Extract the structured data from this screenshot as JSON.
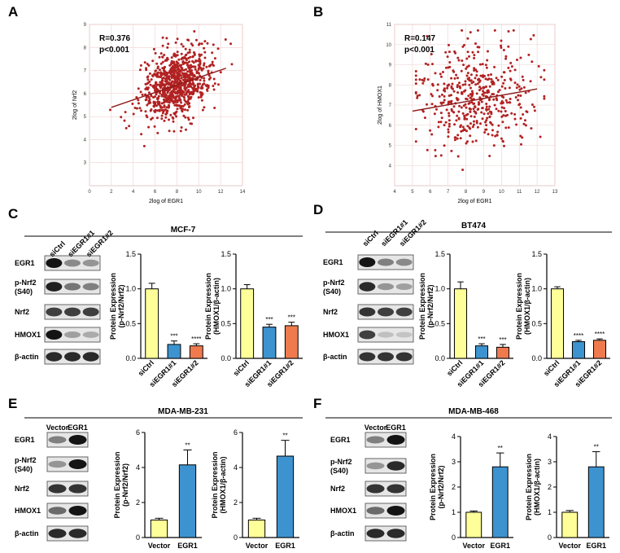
{
  "colors": {
    "yellow": "#ffff99",
    "blue": "#3d93cf",
    "orange": "#ee7a4e",
    "scatter_point": "#b22222",
    "reg_line": "#8b1a1a",
    "grid": "#f0d0d0"
  },
  "panels": {
    "A": {
      "label": "A",
      "stat_r": "R=0.376",
      "stat_p": "p<0.001",
      "xlabel": "2log of EGR1",
      "ylabel": "2log of Nrf2"
    },
    "B": {
      "label": "B",
      "stat_r": "R=0.147",
      "stat_p": "p<0.001",
      "xlabel": "2log of EGR1",
      "ylabel": "2log of HMOX1"
    },
    "C": {
      "label": "C",
      "title": "MCF-7"
    },
    "D": {
      "label": "D",
      "title": "BT474"
    },
    "E": {
      "label": "E",
      "title": "MDA-MB-231"
    },
    "F": {
      "label": "F",
      "title": "MDA-MB-468"
    }
  },
  "blot_rows": {
    "egr1": "EGR1",
    "pnrf2_1": "p-Nrf2",
    "pnrf2_2": "(S40)",
    "nrf2": "Nrf2",
    "hmox1": "HMOX1",
    "actin": "β-actin"
  },
  "lane_labels": {
    "knock": [
      "siCtrl",
      "siEGR1#1",
      "siEGR1#2"
    ],
    "over": [
      "Vector",
      "EGR1"
    ]
  },
  "chart_data": [
    {
      "id": "A",
      "type": "scatter",
      "title": "",
      "xlabel": "2log of EGR1",
      "ylabel": "2log of Nrf2",
      "xlim": [
        0,
        14
      ],
      "ylim": [
        2,
        9
      ],
      "xticks": [
        "0",
        "2",
        "4",
        "6",
        "8",
        "10",
        "12",
        "14"
      ],
      "yticks": [
        "3",
        "4",
        "5",
        "6",
        "7",
        "8",
        "9"
      ],
      "regression": {
        "x": [
          2,
          12.5
        ],
        "y": [
          5.4,
          7.1
        ]
      },
      "annotation": [
        "R=0.376",
        "p<0.001"
      ]
    },
    {
      "id": "B",
      "type": "scatter",
      "title": "",
      "xlabel": "2log of EGR1",
      "ylabel": "2log of HMOX1",
      "xlim": [
        4,
        13
      ],
      "ylim": [
        3,
        11
      ],
      "xticks": [
        "4",
        "5",
        "6",
        "7",
        "8",
        "9",
        "10",
        "11",
        "12",
        "13"
      ],
      "yticks": [
        "4",
        "5",
        "6",
        "7",
        "8",
        "9",
        "10",
        "11"
      ],
      "regression": {
        "x": [
          5,
          12
        ],
        "y": [
          6.7,
          7.8
        ]
      },
      "annotation": [
        "R=0.147",
        "p<0.001"
      ]
    },
    {
      "id": "C1",
      "type": "bar",
      "cell_line": "MCF-7",
      "categories": [
        "siCtrl",
        "siEGR1#1",
        "siEGR1#2"
      ],
      "values": [
        1.0,
        0.2,
        0.18
      ],
      "errors": [
        0.08,
        0.05,
        0.03
      ],
      "significance": [
        "",
        "***",
        "****"
      ],
      "ylabel": "Protein Expression (p-Nrf2/Nrf2)",
      "ylim": [
        0,
        1.5
      ],
      "yticks": [
        "0.0",
        "0.5",
        "1.0",
        "1.5"
      ]
    },
    {
      "id": "C2",
      "type": "bar",
      "cell_line": "MCF-7",
      "categories": [
        "siCtrl",
        "siEGR1#1",
        "siEGR1#2"
      ],
      "values": [
        1.0,
        0.45,
        0.47
      ],
      "errors": [
        0.06,
        0.04,
        0.05
      ],
      "significance": [
        "",
        "***",
        "***"
      ],
      "ylabel": "Protein Expression (HMOX1/β-actin)",
      "ylim": [
        0,
        1.5
      ],
      "yticks": [
        "0.0",
        "0.5",
        "1.0",
        "1.5"
      ]
    },
    {
      "id": "D1",
      "type": "bar",
      "cell_line": "BT474",
      "categories": [
        "siCtrl",
        "siEGR1#1",
        "siEGR1#2"
      ],
      "values": [
        1.0,
        0.18,
        0.16
      ],
      "errors": [
        0.1,
        0.03,
        0.04
      ],
      "significance": [
        "",
        "***",
        "***"
      ],
      "ylabel": "Protein Expression (p-Nrf2/Nrf2)",
      "ylim": [
        0,
        1.5
      ],
      "yticks": [
        "0.0",
        "0.5",
        "1.0",
        "1.5"
      ]
    },
    {
      "id": "D2",
      "type": "bar",
      "cell_line": "BT474",
      "categories": [
        "siCtrl",
        "siEGR1#1",
        "siEGR1#2"
      ],
      "values": [
        1.0,
        0.24,
        0.26
      ],
      "errors": [
        0.03,
        0.02,
        0.02
      ],
      "significance": [
        "",
        "****",
        "****"
      ],
      "ylabel": "Protein Expression (HMOX1/β-actin)",
      "ylim": [
        0,
        1.5
      ],
      "yticks": [
        "0.0",
        "0.5",
        "1.0",
        "1.5"
      ]
    },
    {
      "id": "E1",
      "type": "bar",
      "cell_line": "MDA-MB-231",
      "categories": [
        "Vector",
        "EGR1"
      ],
      "values": [
        1.0,
        4.15
      ],
      "errors": [
        0.1,
        0.85
      ],
      "significance": [
        "",
        "**"
      ],
      "ylabel": "Protein Expression (p-Nrf2/Nrf2)",
      "ylim": [
        0,
        6
      ],
      "yticks": [
        "0",
        "2",
        "4",
        "6"
      ]
    },
    {
      "id": "E2",
      "type": "bar",
      "cell_line": "MDA-MB-231",
      "categories": [
        "Vector",
        "EGR1"
      ],
      "values": [
        1.0,
        4.65
      ],
      "errors": [
        0.1,
        0.9
      ],
      "significance": [
        "",
        "**"
      ],
      "ylabel": "Protein Expression (HMOX1/β-actin)",
      "ylim": [
        0,
        6
      ],
      "yticks": [
        "0",
        "2",
        "4",
        "6"
      ]
    },
    {
      "id": "F1",
      "type": "bar",
      "cell_line": "MDA-MB-468",
      "categories": [
        "Vector",
        "EGR1"
      ],
      "values": [
        1.0,
        2.8
      ],
      "errors": [
        0.05,
        0.55
      ],
      "significance": [
        "",
        "**"
      ],
      "ylabel": "Protein Expression (p-Nrf2/Nrf2)",
      "ylim": [
        0,
        4
      ],
      "yticks": [
        "0",
        "1",
        "2",
        "3",
        "4"
      ]
    },
    {
      "id": "F2",
      "type": "bar",
      "cell_line": "MDA-MB-468",
      "categories": [
        "Vector",
        "EGR1"
      ],
      "values": [
        1.0,
        2.8
      ],
      "errors": [
        0.07,
        0.6
      ],
      "significance": [
        "",
        "**"
      ],
      "ylabel": "Protein Expression (HMOX1/β-actin)",
      "ylim": [
        0,
        4
      ],
      "yticks": [
        "0",
        "1",
        "2",
        "3",
        "4"
      ]
    }
  ]
}
